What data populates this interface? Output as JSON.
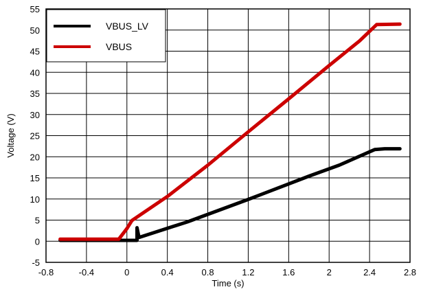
{
  "chart_data": {
    "type": "line",
    "xlabel": "Time (s)",
    "ylabel": "Voltage (V)",
    "xlim": [
      -0.8,
      2.8
    ],
    "ylim": [
      -5,
      55
    ],
    "xticks": [
      -0.8,
      -0.4,
      0,
      0.4,
      0.8,
      1.2,
      1.6,
      2,
      2.4,
      2.8
    ],
    "xtick_labels": [
      "-0.8",
      "-0.4",
      "0",
      "0.4",
      "0.8",
      "1.2",
      "1.6",
      "2",
      "2.4",
      "2.8"
    ],
    "yticks": [
      -5,
      0,
      5,
      10,
      15,
      20,
      25,
      30,
      35,
      40,
      45,
      50,
      55
    ],
    "ytick_labels": [
      "-5",
      "0",
      "5",
      "10",
      "15",
      "20",
      "25",
      "30",
      "35",
      "40",
      "45",
      "50",
      "55"
    ],
    "grid": true,
    "legend_position": "top-left",
    "series": [
      {
        "name": "VBUS_LV",
        "color": "#000000",
        "points": [
          [
            -0.66,
            0.2
          ],
          [
            -0.3,
            0.2
          ],
          [
            0.1,
            0.2
          ],
          [
            0.1,
            3.2
          ],
          [
            0.12,
            0.9
          ],
          [
            0.6,
            4.6
          ],
          [
            1.2,
            9.9
          ],
          [
            1.8,
            15.4
          ],
          [
            2.1,
            18.0
          ],
          [
            2.45,
            21.7
          ],
          [
            2.55,
            21.9
          ],
          [
            2.7,
            21.9
          ]
        ]
      },
      {
        "name": "VBUS",
        "color": "#cc0000",
        "points": [
          [
            -0.66,
            0.5
          ],
          [
            -0.3,
            0.5
          ],
          [
            -0.08,
            0.5
          ],
          [
            0.0,
            3.0
          ],
          [
            0.05,
            4.9
          ],
          [
            0.4,
            10.6
          ],
          [
            0.8,
            18.0
          ],
          [
            1.2,
            25.9
          ],
          [
            1.6,
            33.7
          ],
          [
            2.0,
            41.6
          ],
          [
            2.3,
            47.4
          ],
          [
            2.47,
            51.3
          ],
          [
            2.7,
            51.4
          ]
        ]
      }
    ]
  }
}
